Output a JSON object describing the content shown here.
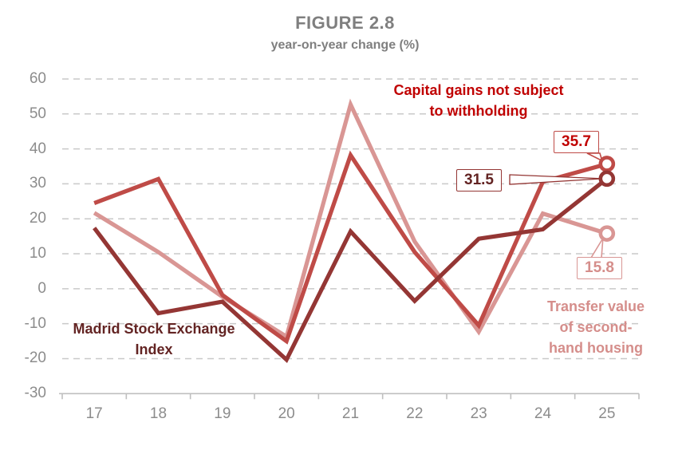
{
  "title": "FIGURE 2.8",
  "subtitle": "year-on-year change (%)",
  "colors": {
    "capital_gains_line": "#BF4B47",
    "madrid_index_line": "#943634",
    "transfer_value_line": "#D99694",
    "capital_gains_text": "#C00000",
    "madrid_text": "#632423",
    "transfer_text": "#D58E8B",
    "grid": "#C9C9C9",
    "axis": "#BFBFBF",
    "tick_text": "#8C8C8C",
    "title_text": "#7F7F7F"
  },
  "chart_data": {
    "type": "line",
    "title": "FIGURE 2.8",
    "subtitle": "year-on-year change (%)",
    "categories": [
      "17",
      "18",
      "19",
      "20",
      "21",
      "22",
      "23",
      "24",
      "25"
    ],
    "series": [
      {
        "name": "Capital gains not subject to withholding",
        "color_key": "capital_gains_line",
        "values": [
          24.5,
          31.4,
          -1.8,
          -15.0,
          38.2,
          10.5,
          -10.5,
          30.6,
          35.7
        ],
        "end_label": "35.7"
      },
      {
        "name": "Madrid Stock Exchange Index",
        "color_key": "madrid_index_line",
        "values": [
          17.4,
          -7.0,
          -3.7,
          -20.3,
          16.4,
          -3.5,
          14.3,
          17.0,
          31.5
        ],
        "end_label": "31.5"
      },
      {
        "name": "Transfer value of second-hand housing",
        "color_key": "transfer_value_line",
        "values": [
          21.7,
          10.5,
          -2.3,
          -13.7,
          52.7,
          13.5,
          -12.3,
          21.5,
          15.8
        ],
        "end_label": "15.8"
      }
    ],
    "yticks": [
      60,
      50,
      40,
      30,
      20,
      10,
      0,
      -10,
      -20,
      -30
    ],
    "ylim": [
      -30,
      60
    ],
    "grid": "horizontal dashed",
    "legend": "inline text annotations",
    "markers": "open circles on last point only"
  },
  "annotations": {
    "capital_gains": "Capital gains not subject\nto withholding",
    "madrid_index": "Madrid Stock Exchange\nIndex",
    "transfer_value": "Transfer value\nof second-\nhand housing",
    "label_capital_end": "35.7",
    "label_madrid_end": "31.5",
    "label_transfer_end": "15.8"
  }
}
